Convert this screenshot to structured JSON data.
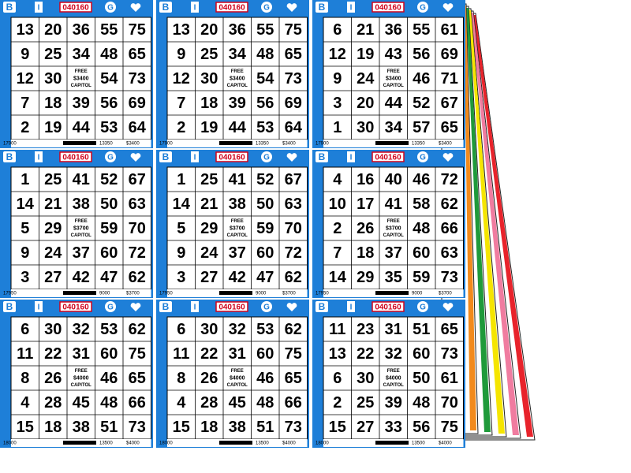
{
  "icons": {
    "left": "B",
    "middle": "I",
    "right": "G"
  },
  "cards": [
    {
      "serial": "040160",
      "rows": [
        [
          13,
          20,
          36,
          55,
          75
        ],
        [
          9,
          25,
          34,
          48,
          65
        ],
        [
          12,
          30,
          null,
          54,
          73
        ],
        [
          7,
          18,
          39,
          56,
          69
        ],
        [
          2,
          19,
          44,
          53,
          64
        ]
      ],
      "center": {
        "label": "FREE",
        "prize": "$3400",
        "name": "CAPITOL"
      },
      "footer": [
        "17900",
        "13350",
        "$3400"
      ]
    },
    {
      "serial": "040160",
      "rows": [
        [
          13,
          20,
          36,
          55,
          75
        ],
        [
          9,
          25,
          34,
          48,
          65
        ],
        [
          12,
          30,
          null,
          54,
          73
        ],
        [
          7,
          18,
          39,
          56,
          69
        ],
        [
          2,
          19,
          44,
          53,
          64
        ]
      ],
      "center": {
        "label": "FREE",
        "prize": "$3400",
        "name": "CAPITOL"
      },
      "footer": [
        "17900",
        "13350",
        "$3400"
      ]
    },
    {
      "serial": "040160",
      "rows": [
        [
          6,
          21,
          36,
          55,
          61
        ],
        [
          12,
          19,
          43,
          56,
          69
        ],
        [
          9,
          24,
          null,
          46,
          71
        ],
        [
          3,
          20,
          44,
          52,
          67
        ],
        [
          1,
          30,
          34,
          57,
          65
        ]
      ],
      "center": {
        "label": "FREE",
        "prize": "$3400",
        "name": "CAPITOL"
      },
      "footer": [
        "17900",
        "13350",
        "$3400"
      ]
    },
    {
      "serial": "040160",
      "rows": [
        [
          1,
          25,
          41,
          52,
          67
        ],
        [
          14,
          21,
          38,
          50,
          63
        ],
        [
          5,
          29,
          null,
          59,
          70
        ],
        [
          9,
          24,
          37,
          60,
          72
        ],
        [
          3,
          27,
          42,
          47,
          62
        ]
      ],
      "center": {
        "label": "FREE",
        "prize": "$3700",
        "name": "CAPITOL"
      },
      "footer": [
        "17950",
        "9000",
        "$3700"
      ]
    },
    {
      "serial": "040160",
      "rows": [
        [
          1,
          25,
          41,
          52,
          67
        ],
        [
          14,
          21,
          38,
          50,
          63
        ],
        [
          5,
          29,
          null,
          59,
          70
        ],
        [
          9,
          24,
          37,
          60,
          72
        ],
        [
          3,
          27,
          42,
          47,
          62
        ]
      ],
      "center": {
        "label": "FREE",
        "prize": "$3700",
        "name": "CAPITOL"
      },
      "footer": [
        "17950",
        "9000",
        "$3700"
      ]
    },
    {
      "serial": "040160",
      "rows": [
        [
          4,
          16,
          40,
          46,
          72
        ],
        [
          10,
          17,
          41,
          58,
          62
        ],
        [
          2,
          26,
          null,
          48,
          66
        ],
        [
          7,
          18,
          37,
          60,
          63
        ],
        [
          14,
          29,
          35,
          59,
          73
        ]
      ],
      "center": {
        "label": "FREE",
        "prize": "$3700",
        "name": "CAPITOL"
      },
      "footer": [
        "17950",
        "9000",
        "$3700"
      ]
    },
    {
      "serial": "040160",
      "rows": [
        [
          6,
          30,
          32,
          53,
          62
        ],
        [
          11,
          22,
          31,
          60,
          75
        ],
        [
          8,
          26,
          null,
          46,
          65
        ],
        [
          4,
          28,
          45,
          48,
          66
        ],
        [
          15,
          18,
          38,
          51,
          73
        ]
      ],
      "center": {
        "label": "FREE",
        "prize": "$4000",
        "name": "CAPITOL"
      },
      "footer": [
        "18000",
        "13500",
        "$4000"
      ]
    },
    {
      "serial": "040160",
      "rows": [
        [
          6,
          30,
          32,
          53,
          62
        ],
        [
          11,
          22,
          31,
          60,
          75
        ],
        [
          8,
          26,
          null,
          46,
          65
        ],
        [
          4,
          28,
          45,
          48,
          66
        ],
        [
          15,
          18,
          38,
          51,
          73
        ]
      ],
      "center": {
        "label": "FREE",
        "prize": "$4000",
        "name": "CAPITOL"
      },
      "footer": [
        "18000",
        "13500",
        "$4000"
      ]
    },
    {
      "serial": "040160",
      "rows": [
        [
          11,
          23,
          31,
          51,
          65
        ],
        [
          13,
          22,
          32,
          60,
          73
        ],
        [
          6,
          30,
          null,
          50,
          61
        ],
        [
          2,
          25,
          39,
          48,
          70
        ],
        [
          15,
          27,
          33,
          56,
          75
        ]
      ],
      "center": {
        "label": "FREE",
        "prize": "$4000",
        "name": "CAPITOL"
      },
      "footer": [
        "18000",
        "13500",
        "$4000"
      ]
    }
  ]
}
